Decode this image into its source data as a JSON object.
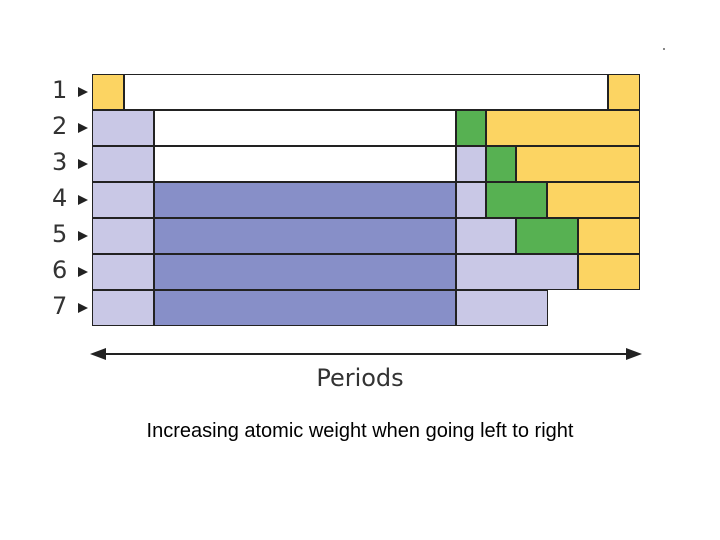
{
  "diagram": {
    "row_labels": [
      "1",
      "2",
      "3",
      "4",
      "5",
      "6",
      "7"
    ],
    "axis_label": "Periods",
    "caption": "Increasing atomic weight when going left to right"
  },
  "colors": {
    "yellow": "#fcd462",
    "green": "#57b152",
    "light_purple": "#c9c8e6",
    "dark_purple": "#878fc8",
    "white": "#ffffff",
    "border": "#222222"
  },
  "icons": {
    "row_marker": "triangle-right-icon",
    "axis": "double-headed-arrow-icon"
  }
}
